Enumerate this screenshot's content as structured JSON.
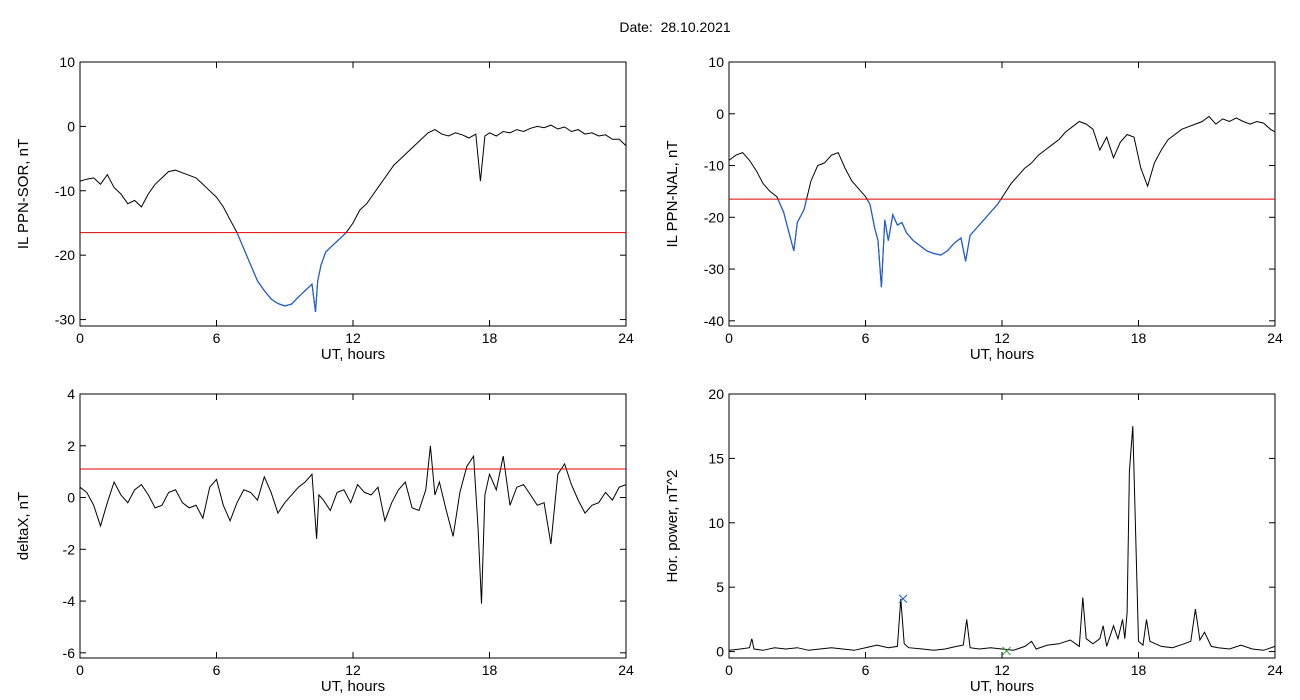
{
  "header": {
    "date_label": "Date:",
    "date_value": "28.10.2021"
  },
  "chart_data": [
    {
      "type": "line",
      "ylabel": "IL PPN-SOR, nT",
      "xlabel": "UT, hours",
      "xlim": [
        0,
        24
      ],
      "ylim": [
        -31,
        10
      ],
      "xticks": [
        0,
        6,
        12,
        18,
        24
      ],
      "yticks": [
        -30,
        -20,
        -10,
        0,
        10
      ],
      "threshold": -16.5,
      "highlight_below_threshold": true,
      "colors": {
        "line": "#000000",
        "highlight": "#1f5fd6",
        "threshold": "#e00000"
      },
      "series": [
        {
          "x": [
            0,
            0.3,
            0.6,
            0.9,
            1.2,
            1.5,
            1.8,
            2.1,
            2.4,
            2.7,
            3.0,
            3.3,
            3.6,
            3.9,
            4.2,
            4.5,
            4.8,
            5.1,
            5.4,
            5.7,
            6.0,
            6.3,
            6.6,
            6.9,
            7.2,
            7.5,
            7.8,
            8.1,
            8.4,
            8.7,
            9.0,
            9.3,
            9.6,
            9.9,
            10.2,
            10.35,
            10.45,
            10.6,
            10.8,
            11.1,
            11.4,
            11.7,
            12.0,
            12.3,
            12.6,
            12.9,
            13.2,
            13.5,
            13.8,
            14.1,
            14.4,
            14.7,
            15.0,
            15.3,
            15.6,
            15.9,
            16.2,
            16.5,
            16.8,
            17.1,
            17.4,
            17.6,
            17.8,
            18.0,
            18.3,
            18.6,
            18.9,
            19.2,
            19.5,
            19.8,
            20.1,
            20.4,
            20.7,
            21.0,
            21.3,
            21.6,
            21.9,
            22.2,
            22.5,
            22.8,
            23.1,
            23.4,
            23.7,
            24
          ],
          "y": [
            -8.5,
            -8.2,
            -8.0,
            -9.0,
            -7.5,
            -9.5,
            -10.5,
            -12.0,
            -11.5,
            -12.5,
            -10.5,
            -9.0,
            -8.0,
            -7.0,
            -6.8,
            -7.2,
            -7.6,
            -8.0,
            -9.0,
            -10.0,
            -11.0,
            -12.5,
            -14.5,
            -16.5,
            -19.0,
            -21.5,
            -24.0,
            -25.5,
            -26.8,
            -27.5,
            -27.9,
            -27.6,
            -26.5,
            -25.5,
            -24.5,
            -28.8,
            -24.0,
            -21.5,
            -19.5,
            -18.5,
            -17.5,
            -16.5,
            -15.0,
            -13.0,
            -12.0,
            -10.5,
            -9.0,
            -7.5,
            -6.0,
            -5.0,
            -4.0,
            -3.0,
            -2.0,
            -1.0,
            -0.5,
            -1.2,
            -1.5,
            -1.0,
            -1.3,
            -1.8,
            -1.2,
            -8.5,
            -1.5,
            -1.0,
            -1.5,
            -0.8,
            -1.0,
            -0.5,
            -0.8,
            -0.3,
            0.0,
            -0.2,
            0.2,
            -0.4,
            -0.1,
            -0.8,
            -0.5,
            -1.2,
            -1.0,
            -1.5,
            -1.3,
            -2.0,
            -2.0,
            -3.0
          ]
        }
      ]
    },
    {
      "type": "line",
      "ylabel": "IL PPN-NAL, nT",
      "xlabel": "UT, hours",
      "xlim": [
        0,
        24
      ],
      "ylim": [
        -41,
        10
      ],
      "xticks": [
        0,
        6,
        12,
        18,
        24
      ],
      "yticks": [
        -40,
        -30,
        -20,
        -10,
        0,
        10
      ],
      "threshold": -16.5,
      "highlight_below_threshold": true,
      "colors": {
        "line": "#000000",
        "highlight": "#1f5fd6",
        "threshold": "#e00000"
      },
      "series": [
        {
          "x": [
            0,
            0.3,
            0.6,
            0.9,
            1.2,
            1.5,
            1.8,
            2.1,
            2.4,
            2.7,
            2.85,
            3.0,
            3.3,
            3.6,
            3.9,
            4.2,
            4.5,
            4.8,
            5.1,
            5.4,
            5.7,
            6.0,
            6.2,
            6.4,
            6.55,
            6.7,
            6.85,
            7.0,
            7.2,
            7.4,
            7.6,
            7.8,
            8.1,
            8.4,
            8.7,
            9.0,
            9.3,
            9.6,
            9.9,
            10.2,
            10.4,
            10.6,
            10.9,
            11.2,
            11.5,
            11.8,
            12.1,
            12.4,
            12.7,
            13.0,
            13.3,
            13.6,
            13.9,
            14.2,
            14.5,
            14.8,
            15.1,
            15.4,
            15.7,
            16.0,
            16.3,
            16.6,
            16.9,
            17.2,
            17.5,
            17.8,
            18.1,
            18.4,
            18.7,
            19.0,
            19.3,
            19.6,
            19.9,
            20.2,
            20.5,
            20.8,
            21.1,
            21.4,
            21.7,
            22.0,
            22.3,
            22.6,
            22.9,
            23.2,
            23.5,
            23.8,
            24
          ],
          "y": [
            -9.0,
            -8.0,
            -7.5,
            -9.0,
            -11.0,
            -13.5,
            -15.0,
            -16.0,
            -19.0,
            -24.0,
            -26.5,
            -21.0,
            -18.5,
            -13.0,
            -10.0,
            -9.5,
            -8.0,
            -7.5,
            -10.5,
            -13.0,
            -14.5,
            -16.0,
            -17.5,
            -22.0,
            -24.5,
            -33.5,
            -20.5,
            -24.5,
            -19.5,
            -21.5,
            -21.0,
            -23.0,
            -24.5,
            -25.5,
            -26.5,
            -27.0,
            -27.3,
            -26.5,
            -25.0,
            -24.0,
            -28.5,
            -23.5,
            -22.0,
            -20.5,
            -19.0,
            -17.5,
            -15.5,
            -13.5,
            -12.0,
            -10.5,
            -9.5,
            -8.0,
            -7.0,
            -6.0,
            -5.0,
            -3.5,
            -2.5,
            -1.5,
            -2.0,
            -3.0,
            -7.0,
            -4.5,
            -8.5,
            -5.5,
            -4.0,
            -4.5,
            -10.5,
            -14.0,
            -9.5,
            -7.0,
            -5.0,
            -4.0,
            -3.0,
            -2.5,
            -2.0,
            -1.5,
            -0.5,
            -2.0,
            -1.0,
            -1.5,
            -0.8,
            -1.5,
            -2.0,
            -1.5,
            -1.8,
            -3.0,
            -3.5
          ]
        }
      ]
    },
    {
      "type": "line",
      "ylabel": "deltaX, nT",
      "xlabel": "UT, hours",
      "xlim": [
        0,
        24
      ],
      "ylim": [
        -6.2,
        4
      ],
      "xticks": [
        0,
        6,
        12,
        18,
        24
      ],
      "yticks": [
        -6,
        -4,
        -2,
        0,
        2,
        4
      ],
      "threshold": 1.1,
      "highlight_below_threshold": false,
      "colors": {
        "line": "#000000",
        "threshold": "#e00000"
      },
      "series": [
        {
          "x": [
            0,
            0.3,
            0.6,
            0.9,
            1.2,
            1.5,
            1.8,
            2.1,
            2.4,
            2.7,
            3.0,
            3.3,
            3.6,
            3.9,
            4.2,
            4.5,
            4.8,
            5.1,
            5.4,
            5.7,
            6.0,
            6.3,
            6.6,
            6.9,
            7.2,
            7.5,
            7.8,
            8.1,
            8.4,
            8.7,
            9.0,
            9.3,
            9.6,
            9.9,
            10.2,
            10.4,
            10.5,
            10.7,
            11.0,
            11.3,
            11.6,
            11.9,
            12.2,
            12.5,
            12.8,
            13.1,
            13.4,
            13.7,
            14.0,
            14.3,
            14.6,
            14.9,
            15.2,
            15.4,
            15.6,
            15.8,
            16.1,
            16.4,
            16.7,
            17.0,
            17.3,
            17.5,
            17.65,
            17.8,
            18.0,
            18.3,
            18.6,
            18.9,
            19.2,
            19.5,
            19.8,
            20.1,
            20.4,
            20.7,
            21.0,
            21.3,
            21.6,
            21.9,
            22.2,
            22.5,
            22.8,
            23.1,
            23.4,
            23.7,
            24
          ],
          "y": [
            0.4,
            0.2,
            -0.3,
            -1.1,
            -0.2,
            0.6,
            0.1,
            -0.2,
            0.3,
            0.5,
            0.1,
            -0.4,
            -0.3,
            0.2,
            0.3,
            -0.2,
            -0.4,
            -0.3,
            -0.8,
            0.4,
            0.7,
            -0.3,
            -0.9,
            -0.2,
            0.3,
            0.2,
            -0.1,
            0.8,
            0.2,
            -0.6,
            -0.2,
            0.1,
            0.4,
            0.6,
            0.9,
            -1.6,
            0.1,
            -0.1,
            -0.5,
            0.2,
            0.3,
            -0.2,
            0.5,
            0.2,
            0.1,
            0.4,
            -0.9,
            -0.2,
            0.3,
            0.6,
            -0.4,
            -0.5,
            0.3,
            2.0,
            0.1,
            0.6,
            -0.5,
            -1.5,
            0.2,
            1.2,
            1.6,
            -1.2,
            -4.1,
            0.1,
            0.9,
            0.3,
            1.6,
            -0.3,
            0.4,
            0.5,
            0.1,
            -0.3,
            -0.2,
            -1.8,
            0.9,
            1.3,
            0.5,
            -0.1,
            -0.6,
            -0.3,
            -0.2,
            0.2,
            -0.1,
            0.4,
            0.5
          ]
        }
      ]
    },
    {
      "type": "line",
      "ylabel": "Hor. power, nT^2",
      "xlabel": "UT, hours",
      "xlim": [
        0,
        24
      ],
      "ylim": [
        -0.5,
        20
      ],
      "xticks": [
        0,
        6,
        12,
        18,
        24
      ],
      "yticks": [
        0,
        5,
        10,
        15,
        20
      ],
      "markers": [
        {
          "x": 7.65,
          "y": 4.1,
          "symbol": "x",
          "color": "#1f5fd6"
        },
        {
          "x": 12.2,
          "y": 0.05,
          "symbol": "x",
          "color": "#2e9e2e"
        }
      ],
      "colors": {
        "line": "#000000"
      },
      "series": [
        {
          "x": [
            0,
            0.5,
            0.9,
            1.0,
            1.1,
            1.5,
            2.0,
            2.5,
            3.0,
            3.5,
            4.0,
            4.5,
            5.0,
            5.5,
            6.0,
            6.5,
            7.0,
            7.4,
            7.55,
            7.7,
            7.9,
            8.5,
            9.0,
            9.5,
            10.0,
            10.3,
            10.45,
            10.6,
            11.0,
            11.5,
            12.0,
            12.5,
            13.0,
            13.3,
            13.5,
            14.0,
            14.5,
            15.0,
            15.4,
            15.55,
            15.7,
            16.0,
            16.3,
            16.45,
            16.6,
            16.9,
            17.1,
            17.3,
            17.4,
            17.5,
            17.6,
            17.75,
            18.0,
            18.2,
            18.35,
            18.5,
            19.0,
            19.5,
            20.0,
            20.3,
            20.5,
            20.7,
            20.9,
            21.2,
            21.5,
            22.0,
            22.5,
            23.0,
            23.5,
            24
          ],
          "y": [
            0.1,
            0.2,
            0.3,
            1.0,
            0.2,
            0.1,
            0.3,
            0.2,
            0.3,
            0.1,
            0.2,
            0.3,
            0.2,
            0.1,
            0.3,
            0.5,
            0.3,
            0.4,
            4.1,
            0.6,
            0.3,
            0.2,
            0.1,
            0.2,
            0.4,
            0.5,
            2.5,
            0.3,
            0.2,
            0.3,
            0.2,
            0.1,
            0.4,
            0.8,
            0.2,
            0.5,
            0.6,
            0.9,
            0.4,
            4.2,
            1.0,
            0.6,
            1.0,
            2.0,
            0.4,
            2.0,
            1.0,
            2.5,
            1.0,
            3.0,
            14.0,
            17.5,
            0.8,
            0.5,
            2.5,
            0.8,
            0.4,
            0.3,
            0.6,
            0.8,
            3.3,
            0.9,
            1.5,
            0.4,
            0.3,
            0.2,
            0.5,
            0.2,
            0.1,
            0.4
          ]
        }
      ]
    }
  ]
}
